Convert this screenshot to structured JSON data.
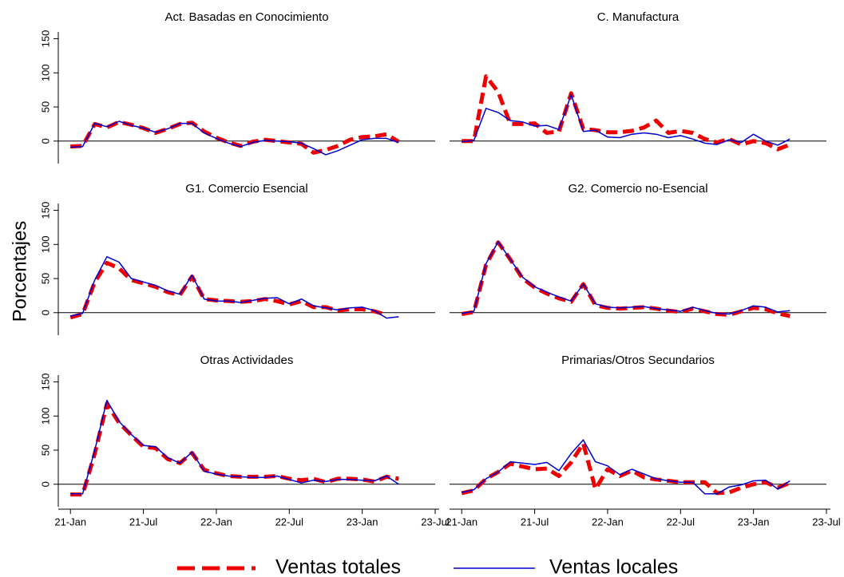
{
  "ylabel": "Porcentajes",
  "legend": "bottom",
  "chart_data": [
    {
      "type": "line",
      "title": "Act. Basadas en Conocimiento",
      "x": [
        "2021-01",
        "2021-02",
        "2021-03",
        "2021-04",
        "2021-05",
        "2021-06",
        "2021-07",
        "2021-08",
        "2021-09",
        "2021-10",
        "2021-11",
        "2021-12",
        "2022-01",
        "2022-02",
        "2022-03",
        "2022-04",
        "2022-05",
        "2022-06",
        "2022-07",
        "2022-08",
        "2022-09",
        "2022-10",
        "2022-11",
        "2022-12",
        "2023-01",
        "2023-02",
        "2023-03",
        "2023-04"
      ],
      "xlim": [
        "2020-12",
        "2023-07"
      ],
      "ylim": [
        -33,
        160
      ],
      "yticks": [
        0,
        50,
        100,
        150
      ],
      "series": [
        {
          "name": "Ventas totales",
          "color": "#ee0000",
          "linestyle": "dashed",
          "linewidth": 5,
          "values": [
            -8,
            -7,
            25,
            20,
            28,
            24,
            19,
            12,
            18,
            25,
            27,
            14,
            5,
            -2,
            -7,
            -1,
            2,
            0,
            -2,
            -4,
            -17,
            -13,
            -7,
            2,
            6,
            7,
            10,
            -1
          ]
        },
        {
          "name": "Ventas locales",
          "color": "#0000cc",
          "linestyle": "solid",
          "linewidth": 1.5,
          "values": [
            -9,
            -8,
            26,
            21,
            29,
            23,
            19,
            13,
            18,
            26,
            26,
            12,
            4,
            -3,
            -8,
            -2,
            1,
            0,
            -1,
            -3,
            -11,
            -20,
            -14,
            -6,
            2,
            4,
            4,
            -2
          ]
        }
      ]
    },
    {
      "type": "line",
      "title": "C. Manufactura",
      "x": [
        "2021-01",
        "2021-02",
        "2021-03",
        "2021-04",
        "2021-05",
        "2021-06",
        "2021-07",
        "2021-08",
        "2021-09",
        "2021-10",
        "2021-11",
        "2021-12",
        "2022-01",
        "2022-02",
        "2022-03",
        "2022-04",
        "2022-05",
        "2022-06",
        "2022-07",
        "2022-08",
        "2022-09",
        "2022-10",
        "2022-11",
        "2022-12",
        "2023-01",
        "2023-02",
        "2023-03",
        "2023-04"
      ],
      "xlim": [
        "2020-12",
        "2023-07"
      ],
      "ylim": [
        -33,
        160
      ],
      "series": [
        {
          "name": "Ventas totales",
          "color": "#ee0000",
          "linestyle": "dashed",
          "linewidth": 5,
          "values": [
            0,
            0,
            95,
            72,
            25,
            25,
            26,
            12,
            14,
            70,
            18,
            16,
            13,
            13,
            15,
            20,
            30,
            12,
            15,
            12,
            3,
            -2,
            3,
            -5,
            0,
            -3,
            -12,
            -5
          ]
        },
        {
          "name": "Ventas locales",
          "color": "#0000cc",
          "linestyle": "solid",
          "linewidth": 1.5,
          "values": [
            -1,
            1,
            48,
            42,
            30,
            28,
            22,
            23,
            17,
            68,
            14,
            16,
            6,
            5,
            10,
            12,
            10,
            5,
            8,
            3,
            -3,
            -5,
            2,
            -2,
            10,
            0,
            -6,
            3
          ]
        }
      ]
    },
    {
      "type": "line",
      "title": "G1. Comercio Esencial",
      "x": [
        "2021-01",
        "2021-02",
        "2021-03",
        "2021-04",
        "2021-05",
        "2021-06",
        "2021-07",
        "2021-08",
        "2021-09",
        "2021-10",
        "2021-11",
        "2021-12",
        "2022-01",
        "2022-02",
        "2022-03",
        "2022-04",
        "2022-05",
        "2022-06",
        "2022-07",
        "2022-08",
        "2022-09",
        "2022-10",
        "2022-11",
        "2022-12",
        "2023-01",
        "2023-02",
        "2023-03",
        "2023-04"
      ],
      "xlim": [
        "2020-12",
        "2023-07"
      ],
      "ylim": [
        -33,
        160
      ],
      "yticks": [
        0,
        50,
        100,
        150
      ],
      "series": [
        {
          "name": "Ventas totales",
          "color": "#ee0000",
          "linestyle": "dashed",
          "linewidth": 5,
          "values": [
            -7,
            -2,
            45,
            73,
            65,
            48,
            43,
            38,
            30,
            26,
            53,
            20,
            18,
            17,
            16,
            17,
            20,
            17,
            12,
            17,
            8,
            8,
            3,
            5,
            5,
            2,
            -3,
            null
          ]
        },
        {
          "name": "Ventas locales",
          "color": "#0000cc",
          "linestyle": "solid",
          "linewidth": 1.5,
          "values": [
            -5,
            -1,
            48,
            82,
            74,
            50,
            45,
            40,
            32,
            27,
            55,
            20,
            17,
            17,
            15,
            18,
            21,
            22,
            13,
            20,
            10,
            7,
            4,
            7,
            8,
            3,
            -8,
            -6
          ]
        }
      ]
    },
    {
      "type": "line",
      "title": "G2. Comercio no-Esencial",
      "x": [
        "2021-01",
        "2021-02",
        "2021-03",
        "2021-04",
        "2021-05",
        "2021-06",
        "2021-07",
        "2021-08",
        "2021-09",
        "2021-10",
        "2021-11",
        "2021-12",
        "2022-01",
        "2022-02",
        "2022-03",
        "2022-04",
        "2022-05",
        "2022-06",
        "2022-07",
        "2022-08",
        "2022-09",
        "2022-10",
        "2022-11",
        "2022-12",
        "2023-01",
        "2023-02",
        "2023-03",
        "2023-04"
      ],
      "xlim": [
        "2020-12",
        "2023-07"
      ],
      "ylim": [
        -33,
        160
      ],
      "series": [
        {
          "name": "Ventas totales",
          "color": "#ee0000",
          "linestyle": "dashed",
          "linewidth": 5,
          "values": [
            -2,
            1,
            70,
            103,
            78,
            50,
            37,
            28,
            21,
            16,
            42,
            11,
            7,
            6,
            7,
            8,
            6,
            3,
            1,
            6,
            2,
            -2,
            -3,
            2,
            7,
            5,
            -1,
            -5
          ]
        },
        {
          "name": "Ventas locales",
          "color": "#0000cc",
          "linestyle": "solid",
          "linewidth": 1.5,
          "values": [
            -1,
            2,
            72,
            104,
            78,
            52,
            38,
            30,
            23,
            17,
            42,
            13,
            8,
            7,
            8,
            9,
            6,
            4,
            2,
            8,
            3,
            -1,
            -2,
            3,
            10,
            8,
            1,
            3
          ]
        }
      ]
    },
    {
      "type": "line",
      "title": "Otras Actividades",
      "x": [
        "2021-01",
        "2021-02",
        "2021-03",
        "2021-04",
        "2021-05",
        "2021-06",
        "2021-07",
        "2021-08",
        "2021-09",
        "2021-10",
        "2021-11",
        "2021-12",
        "2022-01",
        "2022-02",
        "2022-03",
        "2022-04",
        "2022-05",
        "2022-06",
        "2022-07",
        "2022-08",
        "2022-09",
        "2022-10",
        "2022-11",
        "2022-12",
        "2023-01",
        "2023-02",
        "2023-03",
        "2023-04"
      ],
      "xlim": [
        "2020-12",
        "2023-07"
      ],
      "ylim": [
        -33,
        160
      ],
      "yticks": [
        0,
        50,
        100,
        150
      ],
      "xticks": [
        {
          "value": "2021-01",
          "label": "21-Jan"
        },
        {
          "value": "2021-07",
          "label": "21-Jul"
        },
        {
          "value": "2022-01",
          "label": "22-Jan"
        },
        {
          "value": "2022-07",
          "label": "22-Jul"
        },
        {
          "value": "2023-01",
          "label": "23-Jan"
        },
        {
          "value": "2023-07",
          "label": "23-Jul"
        }
      ],
      "series": [
        {
          "name": "Ventas totales",
          "color": "#ee0000",
          "linestyle": "dashed",
          "linewidth": 5,
          "values": [
            -15,
            -15,
            45,
            118,
            90,
            72,
            55,
            53,
            37,
            31,
            46,
            21,
            16,
            12,
            11,
            11,
            11,
            12,
            8,
            6,
            8,
            3,
            8,
            8,
            7,
            4,
            11,
            8
          ]
        },
        {
          "name": "Ventas locales",
          "color": "#0000cc",
          "linestyle": "solid",
          "linewidth": 1.5,
          "values": [
            -14,
            -14,
            50,
            123,
            92,
            73,
            57,
            55,
            39,
            31,
            47,
            19,
            15,
            12,
            11,
            10,
            10,
            12,
            7,
            2,
            6,
            4,
            7,
            7,
            6,
            5,
            12,
            0
          ]
        }
      ]
    },
    {
      "type": "line",
      "title": "Primarias/Otros Secundarios",
      "x": [
        "2021-01",
        "2021-02",
        "2021-03",
        "2021-04",
        "2021-05",
        "2021-06",
        "2021-07",
        "2021-08",
        "2021-09",
        "2021-10",
        "2021-11",
        "2021-12",
        "2022-01",
        "2022-02",
        "2022-03",
        "2022-04",
        "2022-05",
        "2022-06",
        "2022-07",
        "2022-08",
        "2022-09",
        "2022-10",
        "2022-11",
        "2022-12",
        "2023-01",
        "2023-02",
        "2023-03",
        "2023-04"
      ],
      "xlim": [
        "2020-12",
        "2023-07"
      ],
      "ylim": [
        -33,
        160
      ],
      "xticks": [
        {
          "value": "2021-01",
          "label": "21-Jan"
        },
        {
          "value": "2021-07",
          "label": "21-Jul"
        },
        {
          "value": "2022-01",
          "label": "22-Jan"
        },
        {
          "value": "2022-07",
          "label": "22-Jul"
        },
        {
          "value": "2023-01",
          "label": "23-Jan"
        },
        {
          "value": "2023-07",
          "label": "23-Jul"
        }
      ],
      "series": [
        {
          "name": "Ventas totales",
          "color": "#ee0000",
          "linestyle": "dashed",
          "linewidth": 5,
          "values": [
            -13,
            -9,
            8,
            18,
            30,
            26,
            22,
            23,
            12,
            32,
            60,
            -7,
            22,
            12,
            20,
            10,
            7,
            5,
            3,
            3,
            3,
            -13,
            -12,
            -5,
            0,
            3,
            -5,
            2
          ]
        },
        {
          "name": "Ventas locales",
          "color": "#0000cc",
          "linestyle": "solid",
          "linewidth": 1.5,
          "values": [
            -12,
            -8,
            8,
            18,
            33,
            31,
            29,
            32,
            20,
            45,
            65,
            33,
            27,
            14,
            22,
            15,
            8,
            5,
            3,
            3,
            -14,
            -14,
            -4,
            -1,
            5,
            6,
            -7,
            5
          ]
        }
      ]
    }
  ]
}
